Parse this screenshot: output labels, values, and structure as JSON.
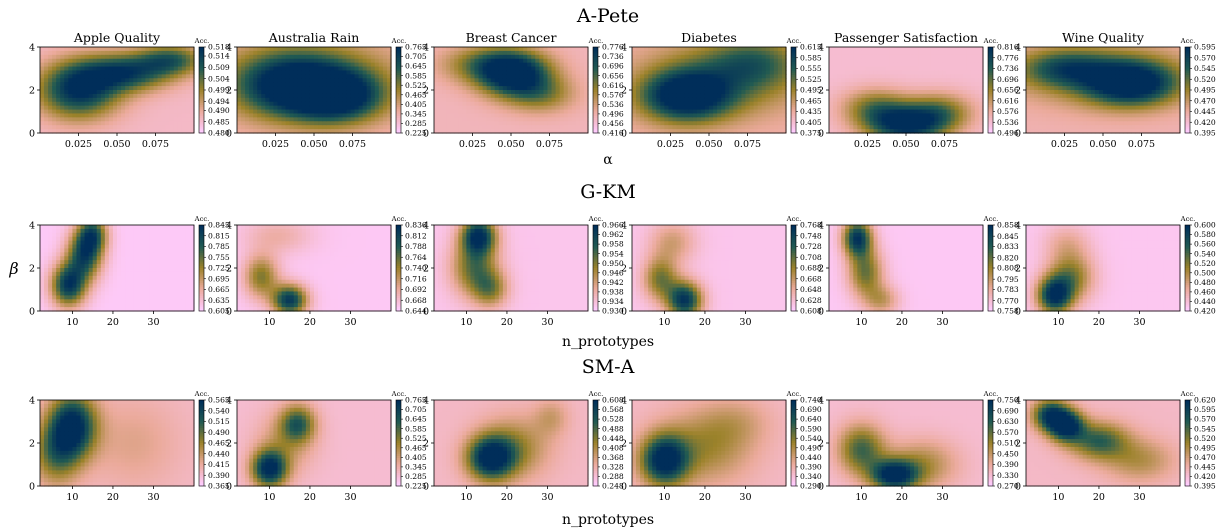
{
  "figure": {
    "sup_ylabel": "β",
    "colormap": [
      "#ffccff",
      "#ebaa9b",
      "#9b822a",
      "#215a52",
      "#002e5a"
    ]
  },
  "chart_data": [
    {
      "type": "heatmap",
      "row_title": "A-Pete",
      "xlabel": "α",
      "ylabel": "",
      "xlim": [
        0,
        0.1
      ],
      "ylim": [
        0,
        4
      ],
      "x_ticks": [
        "0.025",
        "0.050",
        "0.075"
      ],
      "x_tick_values": [
        0.025,
        0.05,
        0.075
      ],
      "y_ticks": [
        "0",
        "2",
        "4"
      ],
      "y_tick_values": [
        0,
        2,
        4
      ],
      "panels": [
        {
          "title": "Apple Quality",
          "colorbar_label": "Acc.",
          "vmin": 0.48,
          "vmax": 0.518,
          "colorbar_ticks": [
            "0.518",
            "0.514",
            "0.509",
            "0.504",
            "0.499",
            "0.494",
            "0.490",
            "0.485",
            "0.480"
          ],
          "base": 0.15,
          "blobs": [
            [
              0.025,
              2.0,
              0.018,
              0.9,
              0.9
            ],
            [
              0.055,
              2.8,
              0.02,
              0.6,
              0.75
            ],
            [
              0.085,
              3.4,
              0.015,
              0.5,
              0.6
            ]
          ]
        },
        {
          "title": "Australia Rain",
          "colorbar_label": "Acc.",
          "vmin": 0.225,
          "vmax": 0.765,
          "colorbar_ticks": [
            "0.765",
            "0.705",
            "0.645",
            "0.585",
            "0.525",
            "0.465",
            "0.405",
            "0.345",
            "0.285",
            "0.225"
          ],
          "base": 0.2,
          "blobs": [
            [
              0.035,
              2.2,
              0.025,
              1.0,
              0.8
            ],
            [
              0.065,
              1.7,
              0.02,
              0.8,
              0.85
            ],
            [
              0.05,
              2.6,
              0.04,
              1.3,
              0.35
            ]
          ]
        },
        {
          "title": "Breast Cancer",
          "colorbar_label": "Acc.",
          "vmin": 0.416,
          "vmax": 0.776,
          "colorbar_ticks": [
            "0.776",
            "0.736",
            "0.696",
            "0.656",
            "0.616",
            "0.576",
            "0.536",
            "0.496",
            "0.456",
            "0.416"
          ],
          "base": 0.18,
          "blobs": [
            [
              0.052,
              2.7,
              0.016,
              0.7,
              0.95
            ],
            [
              0.035,
              3.2,
              0.02,
              0.6,
              0.45
            ],
            [
              0.07,
              1.8,
              0.015,
              0.6,
              0.35
            ]
          ]
        },
        {
          "title": "Diabetes",
          "colorbar_label": "Acc.",
          "vmin": 0.375,
          "vmax": 0.615,
          "colorbar_ticks": [
            "0.615",
            "0.585",
            "0.555",
            "0.525",
            "0.495",
            "0.465",
            "0.435",
            "0.405",
            "0.375"
          ],
          "base": 0.22,
          "blobs": [
            [
              0.035,
              1.7,
              0.02,
              0.8,
              0.95
            ],
            [
              0.06,
              2.6,
              0.035,
              1.2,
              0.4
            ],
            [
              0.08,
              3.3,
              0.02,
              0.8,
              0.35
            ]
          ]
        },
        {
          "title": "Passenger Satisfaction",
          "colorbar_label": "Acc.",
          "vmin": 0.496,
          "vmax": 0.816,
          "colorbar_ticks": [
            "0.816",
            "0.776",
            "0.736",
            "0.696",
            "0.656",
            "0.616",
            "0.576",
            "0.536",
            "0.496"
          ],
          "base": 0.12,
          "blobs": [
            [
              0.05,
              0.4,
              0.018,
              0.6,
              0.95
            ],
            [
              0.03,
              1.2,
              0.015,
              0.6,
              0.45
            ],
            [
              0.072,
              1.0,
              0.015,
              0.6,
              0.45
            ]
          ]
        },
        {
          "title": "Wine Quality",
          "colorbar_label": "Acc.",
          "vmin": 0.395,
          "vmax": 0.595,
          "colorbar_ticks": [
            "0.595",
            "0.570",
            "0.545",
            "0.520",
            "0.495",
            "0.470",
            "0.445",
            "0.420",
            "0.395"
          ],
          "base": 0.2,
          "blobs": [
            [
              0.068,
              2.3,
              0.02,
              0.7,
              0.9
            ],
            [
              0.025,
              3.0,
              0.02,
              0.6,
              0.5
            ],
            [
              0.05,
              2.7,
              0.04,
              1.0,
              0.35
            ]
          ]
        }
      ]
    },
    {
      "type": "heatmap",
      "row_title": "G-KM",
      "xlabel": "n_prototypes",
      "ylabel": "β",
      "xlim": [
        2,
        40
      ],
      "ylim": [
        0,
        4
      ],
      "x_ticks": [
        "10",
        "20",
        "30"
      ],
      "x_tick_values": [
        10,
        20,
        30
      ],
      "y_ticks": [
        "0",
        "2",
        "4"
      ],
      "y_tick_values": [
        0,
        2,
        4
      ],
      "panels": [
        {
          "title": "",
          "colorbar_label": "Acc.",
          "vmin": 0.605,
          "vmax": 0.845,
          "colorbar_ticks": [
            "0.845",
            "0.815",
            "0.785",
            "0.755",
            "0.725",
            "0.695",
            "0.665",
            "0.635",
            "0.605"
          ],
          "base": 0.02,
          "blobs": [
            [
              9,
              1.2,
              3,
              0.7,
              0.95
            ],
            [
              13,
              2.6,
              3,
              0.8,
              0.85
            ],
            [
              15,
              3.6,
              2.5,
              0.6,
              0.7
            ]
          ]
        },
        {
          "title": "",
          "colorbar_label": "Acc.",
          "vmin": 0.644,
          "vmax": 0.836,
          "colorbar_ticks": [
            "0.836",
            "0.812",
            "0.788",
            "0.764",
            "0.740",
            "0.716",
            "0.692",
            "0.668",
            "0.644"
          ],
          "base": 0.03,
          "blobs": [
            [
              15,
              0.5,
              3,
              0.5,
              0.95
            ],
            [
              8,
              1.6,
              3,
              0.7,
              0.55
            ],
            [
              12,
              3.5,
              6,
              0.6,
              0.2
            ]
          ]
        },
        {
          "title": "",
          "colorbar_label": "Acc.",
          "vmin": 0.93,
          "vmax": 0.966,
          "colorbar_ticks": [
            "0.966",
            "0.962",
            "0.958",
            "0.954",
            "0.950",
            "0.946",
            "0.942",
            "0.938",
            "0.934",
            "0.930"
          ],
          "base": 0.05,
          "blobs": [
            [
              13,
              3.5,
              3,
              0.6,
              0.95
            ],
            [
              12,
              2.0,
              4,
              0.9,
              0.6
            ],
            [
              16,
              1.0,
              3,
              0.6,
              0.45
            ]
          ]
        },
        {
          "title": "",
          "colorbar_label": "Acc.",
          "vmin": 0.608,
          "vmax": 0.768,
          "colorbar_ticks": [
            "0.768",
            "0.748",
            "0.728",
            "0.708",
            "0.688",
            "0.668",
            "0.648",
            "0.628",
            "0.608"
          ],
          "base": 0.05,
          "blobs": [
            [
              15,
              0.5,
              3,
              0.6,
              0.95
            ],
            [
              9,
              1.5,
              3,
              0.7,
              0.55
            ],
            [
              12,
              3.2,
              4,
              0.7,
              0.3
            ]
          ]
        },
        {
          "title": "",
          "colorbar_label": "Acc.",
          "vmin": 0.758,
          "vmax": 0.858,
          "colorbar_ticks": [
            "0.858",
            "0.845",
            "0.833",
            "0.820",
            "0.808",
            "0.795",
            "0.783",
            "0.770",
            "0.758"
          ],
          "base": 0.03,
          "blobs": [
            [
              9,
              3.4,
              2.5,
              0.6,
              0.95
            ],
            [
              11,
              1.8,
              3,
              0.8,
              0.6
            ],
            [
              15,
              0.5,
              3,
              0.5,
              0.35
            ]
          ]
        },
        {
          "title": "",
          "colorbar_label": "Acc.",
          "vmin": 0.42,
          "vmax": 0.6,
          "colorbar_ticks": [
            "0.600",
            "0.580",
            "0.560",
            "0.540",
            "0.520",
            "0.500",
            "0.480",
            "0.460",
            "0.440",
            "0.420"
          ],
          "base": 0.04,
          "blobs": [
            [
              9,
              0.7,
              3,
              0.6,
              0.95
            ],
            [
              13,
              1.6,
              4,
              0.8,
              0.55
            ],
            [
              12,
              3.2,
              4,
              0.6,
              0.2
            ]
          ]
        }
      ]
    },
    {
      "type": "heatmap",
      "row_title": "SM-A",
      "xlabel": "n_prototypes",
      "ylabel": "",
      "xlim": [
        2,
        40
      ],
      "ylim": [
        0,
        4
      ],
      "x_ticks": [
        "10",
        "20",
        "30"
      ],
      "x_tick_values": [
        10,
        20,
        30
      ],
      "y_ticks": [
        "0",
        "2",
        "4"
      ],
      "y_tick_values": [
        0,
        2,
        4
      ],
      "panels": [
        {
          "title": "",
          "colorbar_label": "Acc.",
          "vmin": 0.365,
          "vmax": 0.565,
          "colorbar_ticks": [
            "0.565",
            "0.540",
            "0.515",
            "0.490",
            "0.465",
            "0.440",
            "0.415",
            "0.390",
            "0.365"
          ],
          "base": 0.15,
          "blobs": [
            [
              10,
              2.8,
              4,
              1.0,
              0.95
            ],
            [
              6,
              1.5,
              4,
              1.0,
              0.5
            ],
            [
              25,
              2.0,
              8,
              1.5,
              0.15
            ]
          ]
        },
        {
          "title": "",
          "colorbar_label": "Acc.",
          "vmin": 0.225,
          "vmax": 0.765,
          "colorbar_ticks": [
            "0.765",
            "0.705",
            "0.645",
            "0.585",
            "0.525",
            "0.465",
            "0.405",
            "0.345",
            "0.285",
            "0.225"
          ],
          "base": 0.12,
          "blobs": [
            [
              10,
              0.8,
              3,
              0.6,
              0.95
            ],
            [
              17,
              2.9,
              3,
              0.6,
              0.6
            ],
            [
              14,
              2.0,
              5,
              1.0,
              0.25
            ]
          ]
        },
        {
          "title": "",
          "colorbar_label": "Acc.",
          "vmin": 0.248,
          "vmax": 0.608,
          "colorbar_ticks": [
            "0.608",
            "0.568",
            "0.528",
            "0.488",
            "0.448",
            "0.408",
            "0.368",
            "0.328",
            "0.288",
            "0.248"
          ],
          "base": 0.15,
          "blobs": [
            [
              16,
              1.3,
              4,
              0.7,
              0.95
            ],
            [
              22,
              1.8,
              6,
              1.0,
              0.35
            ],
            [
              31,
              3.2,
              3,
              0.6,
              0.2
            ]
          ]
        },
        {
          "title": "",
          "colorbar_label": "Acc.",
          "vmin": 0.29,
          "vmax": 0.74,
          "colorbar_ticks": [
            "0.740",
            "0.690",
            "0.640",
            "0.590",
            "0.540",
            "0.490",
            "0.440",
            "0.390",
            "0.340",
            "0.290"
          ],
          "base": 0.15,
          "blobs": [
            [
              10,
              1.2,
              4,
              0.8,
              0.95
            ],
            [
              20,
              1.8,
              8,
              1.2,
              0.35
            ],
            [
              28,
              3.0,
              6,
              0.8,
              0.15
            ]
          ]
        },
        {
          "title": "",
          "colorbar_label": "Acc.",
          "vmin": 0.27,
          "vmax": 0.75,
          "colorbar_ticks": [
            "0.750",
            "0.690",
            "0.630",
            "0.570",
            "0.510",
            "0.450",
            "0.390",
            "0.330",
            "0.270"
          ],
          "base": 0.12,
          "blobs": [
            [
              18,
              0.5,
              4,
              0.5,
              0.95
            ],
            [
              10,
              1.7,
              4,
              0.8,
              0.6
            ],
            [
              25,
              1.0,
              6,
              0.8,
              0.35
            ]
          ]
        },
        {
          "title": "",
          "colorbar_label": "Acc.",
          "vmin": 0.395,
          "vmax": 0.62,
          "colorbar_ticks": [
            "0.620",
            "0.595",
            "0.570",
            "0.545",
            "0.520",
            "0.495",
            "0.470",
            "0.445",
            "0.420",
            "0.395"
          ],
          "base": 0.15,
          "blobs": [
            [
              8,
              3.3,
              3,
              0.5,
              0.8
            ],
            [
              12,
              2.8,
              3,
              0.5,
              0.95
            ],
            [
              20,
              2.1,
              5,
              0.6,
              0.6
            ],
            [
              30,
              1.2,
              6,
              0.7,
              0.3
            ]
          ]
        }
      ]
    }
  ]
}
